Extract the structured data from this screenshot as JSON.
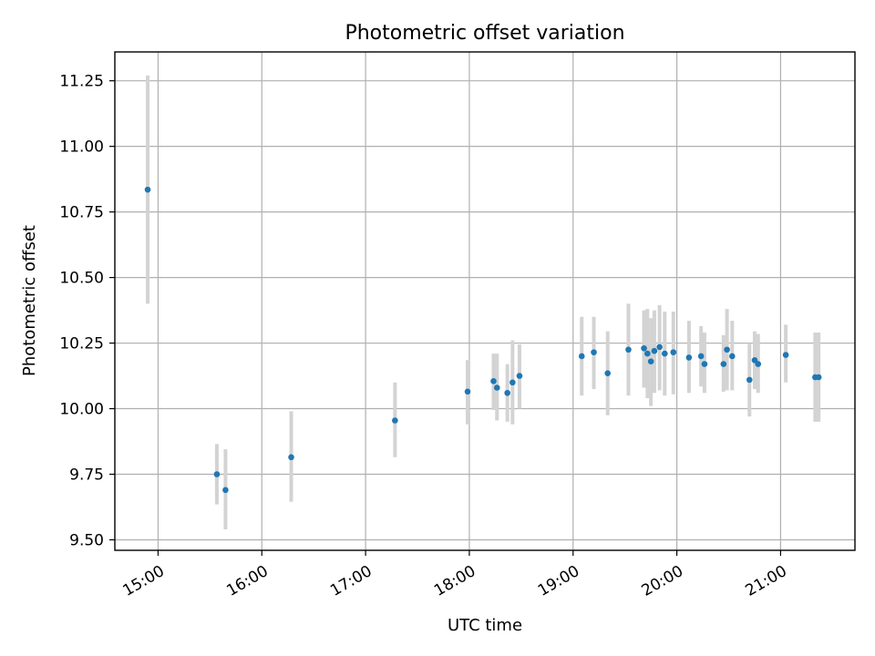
{
  "chart_data": {
    "type": "scatter",
    "title": "Photometric offset variation",
    "xlabel": "UTC time",
    "ylabel": "Photometric offset",
    "xlim": [
      "14:35",
      "21:43"
    ],
    "ylim": [
      9.46,
      11.36
    ],
    "xticks": [
      "15:00",
      "16:00",
      "17:00",
      "18:00",
      "19:00",
      "20:00",
      "21:00"
    ],
    "yticks": [
      "9.50",
      "9.75",
      "10.00",
      "10.25",
      "10.50",
      "10.75",
      "11.00",
      "11.25"
    ],
    "grid": true,
    "point_color": "#1f77b4",
    "errorbar_color": "#d3d3d3",
    "points": [
      {
        "t": "14:54",
        "y": 10.835,
        "lo": 10.4,
        "hi": 11.27
      },
      {
        "t": "15:34",
        "y": 9.75,
        "lo": 9.635,
        "hi": 9.865
      },
      {
        "t": "15:39",
        "y": 9.69,
        "lo": 9.54,
        "hi": 9.845
      },
      {
        "t": "16:17",
        "y": 9.815,
        "lo": 9.645,
        "hi": 9.99
      },
      {
        "t": "17:17",
        "y": 9.955,
        "lo": 9.815,
        "hi": 10.1
      },
      {
        "t": "17:59",
        "y": 10.065,
        "lo": 9.94,
        "hi": 10.185
      },
      {
        "t": "18:14",
        "y": 10.105,
        "lo": 9.995,
        "hi": 10.21
      },
      {
        "t": "18:16",
        "y": 10.08,
        "lo": 9.955,
        "hi": 10.21
      },
      {
        "t": "18:22",
        "y": 10.06,
        "lo": 9.95,
        "hi": 10.17
      },
      {
        "t": "18:25",
        "y": 10.1,
        "lo": 9.94,
        "hi": 10.26
      },
      {
        "t": "18:29",
        "y": 10.125,
        "lo": 10.0,
        "hi": 10.245
      },
      {
        "t": "19:05",
        "y": 10.2,
        "lo": 10.05,
        "hi": 10.35
      },
      {
        "t": "19:12",
        "y": 10.215,
        "lo": 10.075,
        "hi": 10.35
      },
      {
        "t": "19:20",
        "y": 10.135,
        "lo": 9.975,
        "hi": 10.295
      },
      {
        "t": "19:32",
        "y": 10.225,
        "lo": 10.05,
        "hi": 10.4
      },
      {
        "t": "19:41",
        "y": 10.23,
        "lo": 10.08,
        "hi": 10.375
      },
      {
        "t": "19:43",
        "y": 10.21,
        "lo": 10.04,
        "hi": 10.38
      },
      {
        "t": "19:45",
        "y": 10.18,
        "lo": 10.01,
        "hi": 10.345
      },
      {
        "t": "19:47",
        "y": 10.22,
        "lo": 10.06,
        "hi": 10.375
      },
      {
        "t": "19:50",
        "y": 10.235,
        "lo": 10.07,
        "hi": 10.395
      },
      {
        "t": "19:53",
        "y": 10.21,
        "lo": 10.05,
        "hi": 10.37
      },
      {
        "t": "19:58",
        "y": 10.215,
        "lo": 10.055,
        "hi": 10.37
      },
      {
        "t": "20:07",
        "y": 10.195,
        "lo": 10.06,
        "hi": 10.335
      },
      {
        "t": "20:14",
        "y": 10.2,
        "lo": 10.085,
        "hi": 10.315
      },
      {
        "t": "20:16",
        "y": 10.17,
        "lo": 10.06,
        "hi": 10.29
      },
      {
        "t": "20:27",
        "y": 10.17,
        "lo": 10.065,
        "hi": 10.28
      },
      {
        "t": "20:29",
        "y": 10.225,
        "lo": 10.07,
        "hi": 10.38
      },
      {
        "t": "20:32",
        "y": 10.2,
        "lo": 10.07,
        "hi": 10.335
      },
      {
        "t": "20:42",
        "y": 10.11,
        "lo": 9.97,
        "hi": 10.25
      },
      {
        "t": "20:45",
        "y": 10.185,
        "lo": 10.075,
        "hi": 10.295
      },
      {
        "t": "20:47",
        "y": 10.17,
        "lo": 10.06,
        "hi": 10.285
      },
      {
        "t": "21:03",
        "y": 10.205,
        "lo": 10.1,
        "hi": 10.32
      },
      {
        "t": "21:20",
        "y": 10.12,
        "lo": 9.95,
        "hi": 10.29
      },
      {
        "t": "21:22",
        "y": 10.12,
        "lo": 9.95,
        "hi": 10.29
      }
    ]
  }
}
